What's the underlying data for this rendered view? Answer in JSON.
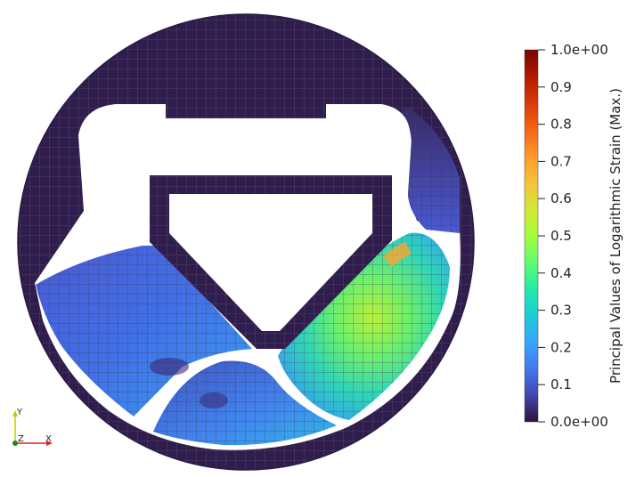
{
  "colorbar": {
    "title": "Principal Values of Logarithmic Strain (Max.)",
    "ticks": [
      "1.0e+00",
      "0.9",
      "0.8",
      "0.7",
      "0.6",
      "0.5",
      "0.4",
      "0.3",
      "0.2",
      "0.1",
      "0.0e+00"
    ],
    "range": [
      0.0,
      1.0
    ],
    "colormap": [
      "#30123b",
      "#4145ab",
      "#4675ed",
      "#39a2fc",
      "#1bcfd4",
      "#24eca6",
      "#61fc6c",
      "#a4fc3b",
      "#d1e834",
      "#f3c63a",
      "#fe9b2d",
      "#f36315",
      "#d93806",
      "#b11901",
      "#7a0402"
    ]
  },
  "orientation_axes": {
    "y_label": "Y",
    "z_label": "Z",
    "x_label": "X"
  },
  "colors": {
    "background": "#ffffff",
    "mesh_base": "#2f1e4d",
    "mesh_line": "#5a4a66"
  }
}
